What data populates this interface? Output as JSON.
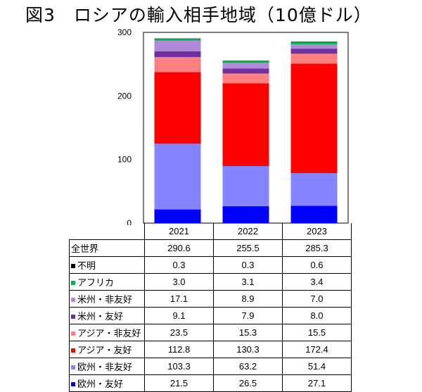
{
  "title": "図3　ロシアの輸入相手地域（10億ドル）",
  "chart_data": {
    "type": "bar",
    "stacked": true,
    "categories": [
      "2021",
      "2022",
      "2023"
    ],
    "ylim": [
      0,
      300
    ],
    "yticks": [
      0,
      100,
      200,
      300
    ],
    "grid": false,
    "total_label": "全世界",
    "totals": [
      "290.6",
      "255.5",
      "285.3"
    ],
    "series": [
      {
        "name": "欧州・友好",
        "color": "#0000ff",
        "values": [
          21.5,
          26.5,
          27.1
        ]
      },
      {
        "name": "欧州・非友好",
        "color": "#8585ff",
        "values": [
          103.3,
          63.2,
          51.4
        ]
      },
      {
        "name": "アジア・友好",
        "color": "#ff0000",
        "values": [
          112.8,
          130.3,
          172.4
        ]
      },
      {
        "name": "アジア・非友好",
        "color": "#ff8080",
        "values": [
          23.5,
          15.3,
          15.5
        ]
      },
      {
        "name": "米州・友好",
        "color": "#7030a0",
        "values": [
          9.1,
          7.9,
          8.0
        ]
      },
      {
        "name": "米州・非友好",
        "color": "#b08ad8",
        "values": [
          17.1,
          8.9,
          7.0
        ]
      },
      {
        "name": "アフリカ",
        "color": "#00b050",
        "values": [
          3.0,
          3.1,
          3.4
        ]
      },
      {
        "name": "不明",
        "color": "#000000",
        "values": [
          0.3,
          0.3,
          0.6
        ]
      }
    ],
    "table_values": [
      [
        "0.3",
        "0.3",
        "0.6"
      ],
      [
        "3.0",
        "3.1",
        "3.4"
      ],
      [
        "17.1",
        "8.9",
        "7.0"
      ],
      [
        "9.1",
        "7.9",
        "8.0"
      ],
      [
        "23.5",
        "15.3",
        "15.5"
      ],
      [
        "112.8",
        "130.3",
        "172.4"
      ],
      [
        "103.3",
        "63.2",
        "51.4"
      ],
      [
        "21.5",
        "26.5",
        "27.1"
      ]
    ]
  }
}
